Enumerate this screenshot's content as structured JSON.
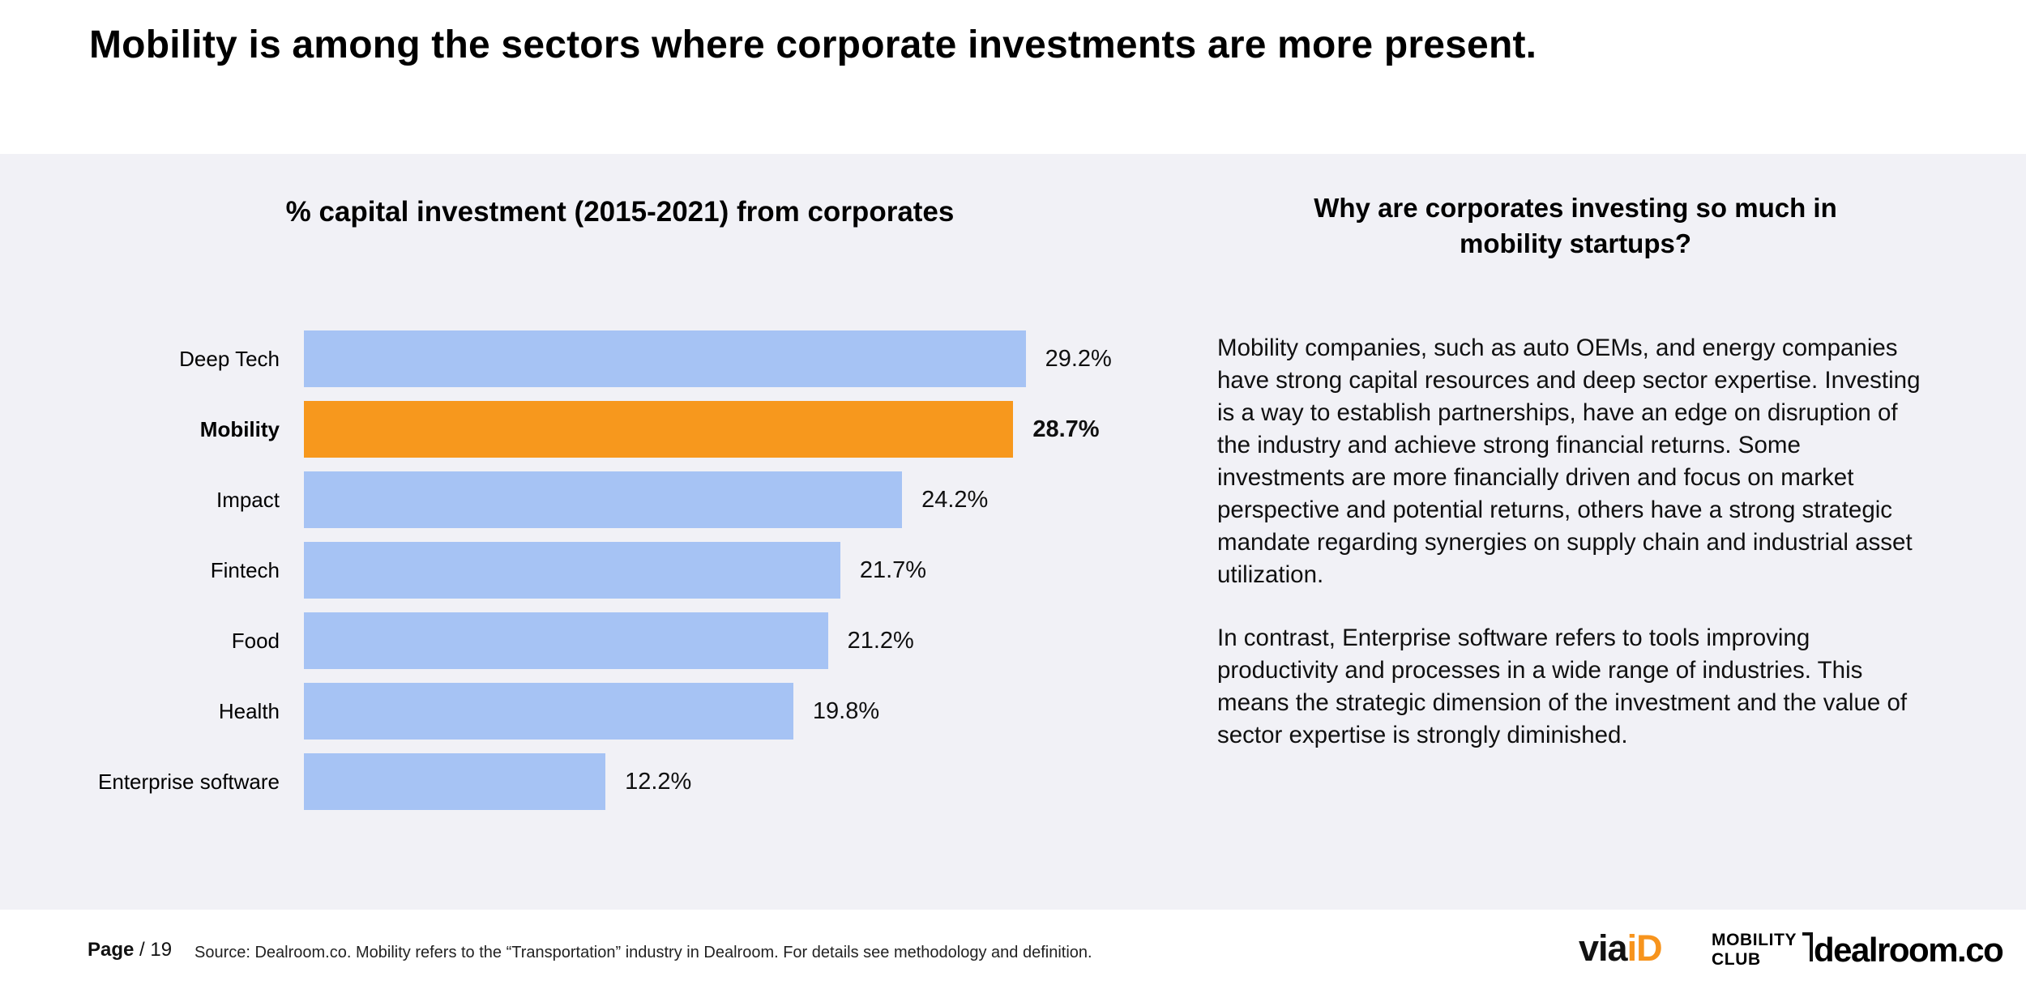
{
  "slide": {
    "title": "Mobility is among the sectors where corporate investments are more present.",
    "page_label": "Page",
    "page_number": "/ 19",
    "source": "Source: Dealroom.co.  Mobility refers to the “Transportation” industry in Dealroom. For details see methodology and definition."
  },
  "chart_data": {
    "type": "bar",
    "orientation": "horizontal",
    "title": "% capital investment (2015-2021) from corporates",
    "categories": [
      "Deep Tech",
      "Mobility",
      "Impact",
      "Fintech",
      "Food",
      "Health",
      "Enterprise software"
    ],
    "values": [
      29.2,
      28.7,
      24.2,
      21.7,
      21.2,
      19.8,
      12.2
    ],
    "value_labels": [
      "29.2%",
      "28.7%",
      "24.2%",
      "21.7%",
      "21.2%",
      "19.8%",
      "12.2%"
    ],
    "highlight_category": "Mobility",
    "bar_color": "#a6c3f4",
    "highlight_color": "#f7981d",
    "xlim": [
      0,
      32
    ],
    "grid": false,
    "legend": false,
    "xlabel": "",
    "ylabel": ""
  },
  "sidebar": {
    "heading": "Why are corporates investing so much in mobility startups?",
    "paragraphs": [
      "Mobility companies, such as auto OEMs, and energy companies have strong capital resources and deep sector expertise. Investing is a way to establish partnerships, have an edge on disruption of the industry and achieve strong financial returns. Some investments are more financially driven and focus on market perspective and potential returns, others have a strong strategic mandate regarding synergies on supply chain and industrial asset utilization.",
      "In contrast, Enterprise software refers to tools improving productivity and processes in a wide range of industries. This means the strategic dimension of the investment and the value of sector expertise is strongly diminished."
    ]
  },
  "logos": {
    "viaid_via": "via",
    "viaid_id": "iD",
    "mobility_club": "MOBILITY\nCLUB",
    "dealroom": "dealroom.co"
  }
}
